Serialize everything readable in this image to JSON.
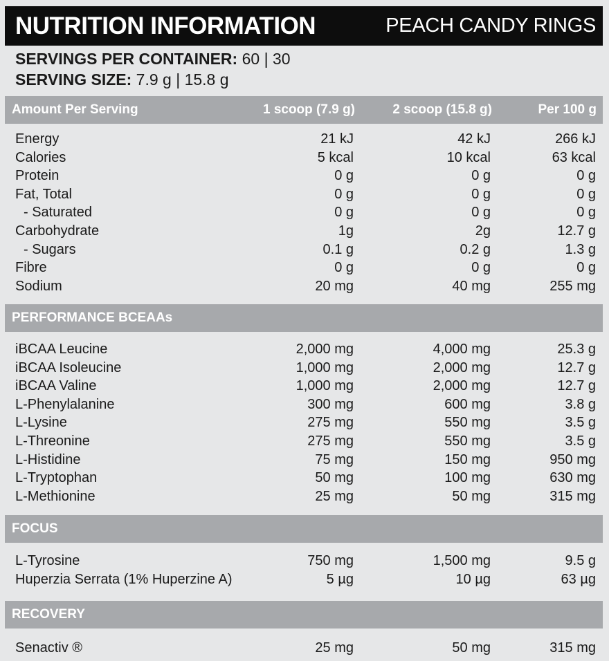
{
  "title": {
    "main": "NUTRITION INFORMATION",
    "sub": "PEACH CANDY RINGS"
  },
  "servings": {
    "container_label": "SERVINGS PER CONTAINER:",
    "container_value": "60 | 30",
    "size_label": "SERVING SIZE:",
    "size_value": "7.9 g | 15.8 g"
  },
  "header": {
    "label": "Amount Per Serving",
    "col1": "1 scoop (7.9 g)",
    "col2": "2 scoop (15.8 g)",
    "col3": "Per 100 g"
  },
  "sections": [
    {
      "title": "",
      "rows": [
        [
          "Energy",
          "21 kJ",
          "42 kJ",
          "266 kJ"
        ],
        [
          "Calories",
          "5 kcal",
          "10 kcal",
          "63 kcal"
        ],
        [
          "Protein",
          "0 g",
          "0 g",
          "0 g"
        ],
        [
          "Fat, Total",
          "0 g",
          "0 g",
          "0 g"
        ],
        [
          "- Saturated",
          "0 g",
          "0 g",
          "0 g"
        ],
        [
          "Carbohydrate",
          "1g",
          "2g",
          "12.7 g"
        ],
        [
          "- Sugars",
          "0.1 g",
          "0.2 g",
          "1.3 g"
        ],
        [
          "Fibre",
          "0 g",
          "0 g",
          "0 g"
        ],
        [
          "Sodium",
          "20 mg",
          "40 mg",
          "255 mg"
        ]
      ]
    },
    {
      "title": "PERFORMANCE BCEAAs",
      "rows": [
        [
          "iBCAA Leucine",
          "2,000 mg",
          "4,000 mg",
          "25.3 g"
        ],
        [
          "iBCAA Isoleucine",
          "1,000 mg",
          "2,000 mg",
          "12.7 g"
        ],
        [
          "iBCAA Valine",
          "1,000 mg",
          "2,000 mg",
          "12.7 g"
        ],
        [
          "L-Phenylalanine",
          "300 mg",
          "600 mg",
          "3.8 g"
        ],
        [
          "L-Lysine",
          "275 mg",
          "550 mg",
          "3.5 g"
        ],
        [
          "L-Threonine",
          "275 mg",
          "550 mg",
          "3.5 g"
        ],
        [
          "L-Histidine",
          "75 mg",
          "150 mg",
          "950 mg"
        ],
        [
          "L-Tryptophan",
          "50 mg",
          "100 mg",
          "630 mg"
        ],
        [
          "L-Methionine",
          "25 mg",
          "50 mg",
          "315 mg"
        ]
      ]
    },
    {
      "title": "FOCUS",
      "rows": [
        [
          "L-Tyrosine",
          "750 mg",
          "1,500 mg",
          "9.5 g"
        ],
        [
          "Huperzia Serrata (1% Huperzine A)",
          "5 µg",
          "10 µg",
          "63 µg"
        ]
      ]
    },
    {
      "title": "RECOVERY",
      "rows": [
        [
          "Senactiv ®",
          "25 mg",
          "50 mg",
          "315 mg"
        ]
      ]
    }
  ]
}
